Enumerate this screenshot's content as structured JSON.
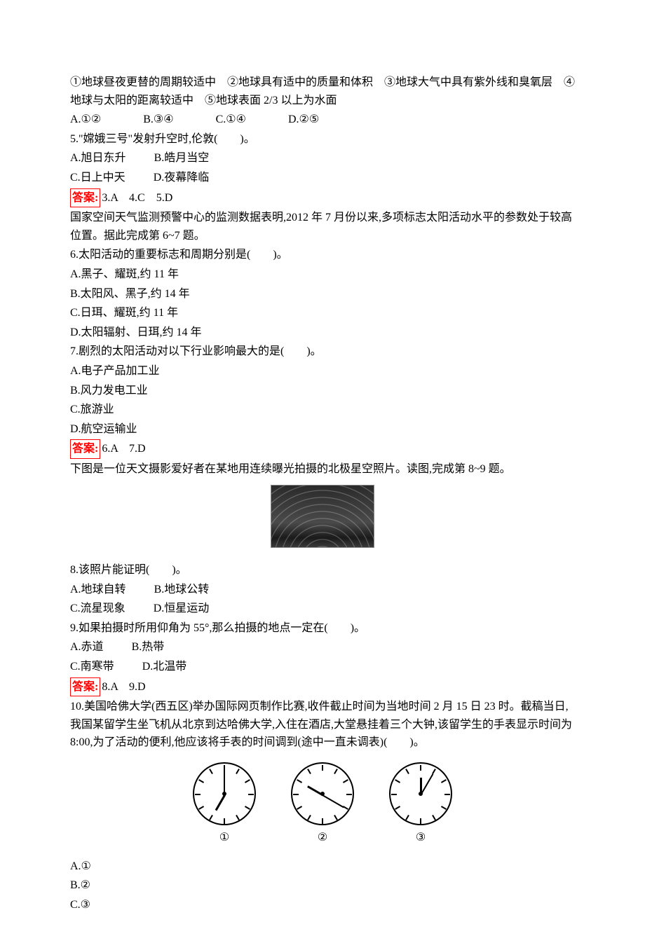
{
  "intro_q4": {
    "conditions": "①地球昼夜更替的周期较适中　②地球具有适中的质量和体积　③地球大气中具有紫外线和臭氧层　④地球与太阳的距离较适中　⑤地球表面 2/3 以上为水面",
    "A": "A.①②",
    "B": "B.③④",
    "C": "C.①④",
    "D": "D.②⑤"
  },
  "q5": {
    "stem": "5.\"嫦娥三号\"发射升空时,伦敦(　　)。",
    "A": "A.旭日东升",
    "B": "B.皓月当空",
    "C": "C.日上中天",
    "D": "D.夜幕降临"
  },
  "ans1": {
    "label": "答案:",
    "text": "3.A　4.C　5.D"
  },
  "intro_67": "国家空间天气监测预警中心的监测数据表明,2012 年 7 月份以来,多项标志太阳活动水平的参数处于较高位置。据此完成第 6~7 题。",
  "q6": {
    "stem": "6.太阳活动的重要标志和周期分别是(　　)。",
    "A": "A.黑子、耀斑,约 11 年",
    "B": "B.太阳风、黑子,约 14 年",
    "C": "C.日珥、耀斑,约 11 年",
    "D": "D.太阳辐射、日珥,约 14 年"
  },
  "q7": {
    "stem": "7.剧烈的太阳活动对以下行业影响最大的是(　　)。",
    "A": "A.电子产品加工业",
    "B": "B.风力发电工业",
    "C": "C.旅游业",
    "D": "D.航空运输业"
  },
  "ans2": {
    "label": "答案:",
    "text": "6.A　7.D"
  },
  "intro_89": "下图是一位天文摄影爱好者在某地用连续曝光拍摄的北极星空照片。读图,完成第 8~9 题。",
  "q8": {
    "stem": "8.该照片能证明(　　)。",
    "A": "A.地球自转",
    "B": "B.地球公转",
    "C": "C.流星现象",
    "D": "D.恒星运动"
  },
  "q9": {
    "stem": "9.如果拍摄时所用仰角为 55°,那么拍摄的地点一定在(　　)。",
    "A": "A.赤道",
    "B": "B.热带",
    "C": "C.南寒带",
    "D": "D.北温带"
  },
  "ans3": {
    "label": "答案:",
    "text": "8.A　9.D"
  },
  "q10": {
    "stem": "10.美国哈佛大学(西五区)举办国际网页制作比赛,收件截止时间为当地时间 2 月 15 日 23 时。截稿当日,我国某留学生坐飞机从北京到达哈佛大学,入住在酒店,大堂悬挂着三个大钟,该留学生的手表显示时间为 8:00,为了活动的便利,他应该将手表的时间调到(途中一直未调表)(　　)。",
    "A": "A.①",
    "B": "B.②",
    "C": "C.③"
  },
  "clocks": {
    "c1": {
      "label": "①",
      "hour_angle": 210,
      "minute_angle": 0
    },
    "c2": {
      "label": "②",
      "hour_angle": 300,
      "minute_angle": 120
    },
    "c3": {
      "label": "③",
      "hour_angle": 0,
      "minute_angle": 30
    }
  }
}
